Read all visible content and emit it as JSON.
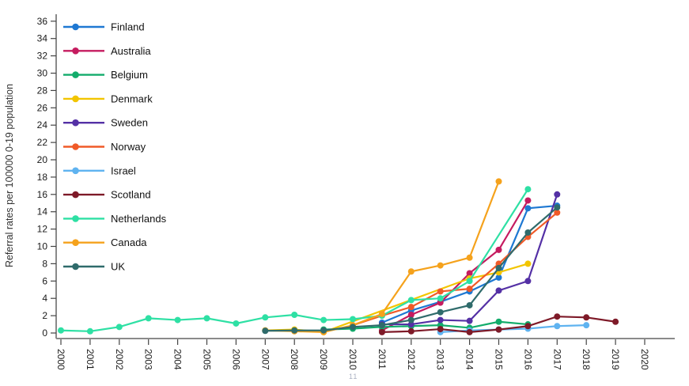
{
  "footnote": "11",
  "chart_data": {
    "type": "line",
    "title": "",
    "xlabel": "",
    "ylabel": "Referral rates per 100000 0-19 population",
    "xlim": [
      2000,
      2020
    ],
    "ylim": [
      0,
      36
    ],
    "x_ticks": [
      2000,
      2001,
      2002,
      2003,
      2004,
      2005,
      2006,
      2007,
      2008,
      2009,
      2010,
      2011,
      2012,
      2013,
      2014,
      2015,
      2016,
      2017,
      2018,
      2019,
      2020
    ],
    "y_ticks": [
      0,
      2,
      4,
      6,
      8,
      10,
      12,
      14,
      16,
      18,
      20,
      22,
      24,
      26,
      28,
      30,
      32,
      34,
      36
    ],
    "grid": false,
    "legend_position": "top-left",
    "axis_color": "#8a8a8a",
    "tick_color": "#444444",
    "tick_label_color": "#1a1a1a",
    "legend_label_color": "#111111",
    "series": [
      {
        "name": "Finland",
        "color": "#1e78d2",
        "points": [
          [
            2011,
            1.2
          ],
          [
            2012,
            2.6
          ],
          [
            2013,
            3.6
          ],
          [
            2014,
            4.8
          ],
          [
            2015,
            6.4
          ],
          [
            2016,
            14.4
          ],
          [
            2017,
            14.7
          ]
        ]
      },
      {
        "name": "Australia",
        "color": "#c51b5f",
        "points": [
          [
            2011,
            0.3
          ],
          [
            2012,
            2.1
          ],
          [
            2013,
            3.5
          ],
          [
            2014,
            6.9
          ],
          [
            2015,
            9.6
          ],
          [
            2016,
            15.3
          ]
        ]
      },
      {
        "name": "Belgium",
        "color": "#12ac6b",
        "points": [
          [
            2009,
            0.4
          ],
          [
            2010,
            0.5
          ],
          [
            2011,
            0.7
          ],
          [
            2012,
            0.8
          ],
          [
            2013,
            0.9
          ],
          [
            2014,
            0.6
          ],
          [
            2015,
            1.3
          ],
          [
            2016,
            1.0
          ]
        ]
      },
      {
        "name": "Denmark",
        "color": "#f2c500",
        "points": [
          [
            2007,
            0.3
          ],
          [
            2008,
            0.4
          ],
          [
            2009,
            0.1
          ],
          [
            2014,
            6.3
          ],
          [
            2015,
            7.0
          ],
          [
            2016,
            8.0
          ]
        ]
      },
      {
        "name": "Sweden",
        "color": "#5430a5",
        "points": [
          [
            2011,
            1.0
          ],
          [
            2012,
            1.0
          ],
          [
            2013,
            1.5
          ],
          [
            2014,
            1.4
          ],
          [
            2015,
            4.9
          ],
          [
            2016,
            6.0
          ],
          [
            2017,
            16.0
          ]
        ]
      },
      {
        "name": "Norway",
        "color": "#f05a28",
        "points": [
          [
            2010,
            0.9
          ],
          [
            2011,
            2.0
          ],
          [
            2012,
            3.0
          ],
          [
            2013,
            4.8
          ],
          [
            2014,
            5.1
          ],
          [
            2015,
            8.0
          ],
          [
            2016,
            11.1
          ],
          [
            2017,
            13.9
          ]
        ]
      },
      {
        "name": "Israel",
        "color": "#5fb3f0",
        "points": [
          [
            2013,
            0.1
          ],
          [
            2014,
            0.3
          ],
          [
            2015,
            0.4
          ],
          [
            2016,
            0.5
          ],
          [
            2017,
            0.8
          ],
          [
            2018,
            0.9
          ]
        ]
      },
      {
        "name": "Scotland",
        "color": "#7e1a28",
        "points": [
          [
            2011,
            0.1
          ],
          [
            2012,
            0.2
          ],
          [
            2013,
            0.45
          ],
          [
            2014,
            0.1
          ],
          [
            2015,
            0.4
          ],
          [
            2016,
            0.8
          ],
          [
            2017,
            1.9
          ],
          [
            2018,
            1.8
          ],
          [
            2019,
            1.3
          ]
        ]
      },
      {
        "name": "Netherlands",
        "color": "#2ee0a4",
        "points": [
          [
            2000,
            0.3
          ],
          [
            2001,
            0.2
          ],
          [
            2002,
            0.7
          ],
          [
            2003,
            1.7
          ],
          [
            2004,
            1.5
          ],
          [
            2005,
            1.7
          ],
          [
            2006,
            1.1
          ],
          [
            2007,
            1.8
          ],
          [
            2008,
            2.1
          ],
          [
            2009,
            1.5
          ],
          [
            2010,
            1.6
          ],
          [
            2011,
            2.0
          ],
          [
            2012,
            3.8
          ],
          [
            2013,
            4.0
          ],
          [
            2014,
            6.0
          ],
          [
            2016,
            16.6
          ]
        ]
      },
      {
        "name": "Canada",
        "color": "#f5a21c",
        "points": [
          [
            2007,
            0.3
          ],
          [
            2008,
            0.2
          ],
          [
            2009,
            0.1
          ],
          [
            2010,
            0.9
          ],
          [
            2011,
            2.2
          ],
          [
            2012,
            7.1
          ],
          [
            2013,
            7.8
          ],
          [
            2014,
            8.7
          ],
          [
            2015,
            17.5
          ]
        ]
      },
      {
        "name": "UK",
        "color": "#2f6b6b",
        "points": [
          [
            2007,
            0.25
          ],
          [
            2008,
            0.3
          ],
          [
            2009,
            0.3
          ],
          [
            2010,
            0.7
          ],
          [
            2011,
            0.9
          ],
          [
            2012,
            1.5
          ],
          [
            2013,
            2.4
          ],
          [
            2014,
            3.2
          ],
          [
            2015,
            7.5
          ],
          [
            2016,
            11.6
          ],
          [
            2017,
            14.5
          ]
        ]
      }
    ]
  }
}
